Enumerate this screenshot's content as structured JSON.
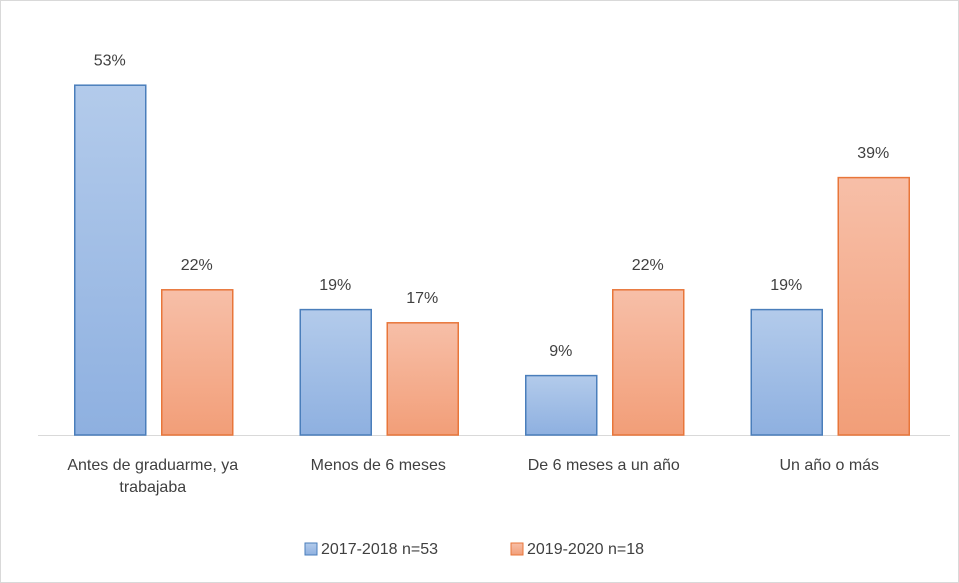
{
  "chart_data": {
    "type": "bar",
    "categories": [
      "Antes de graduarme, ya trabajaba",
      "Menos de 6 meses",
      "De 6 meses a un año",
      "Un año o más"
    ],
    "series": [
      {
        "name": "2017-2018 n=53",
        "color": "#a9c4e8",
        "values": [
          53,
          19,
          9,
          19
        ],
        "value_labels": [
          "53%",
          "19%",
          "9%",
          "19%"
        ]
      },
      {
        "name": "2019-2020 n=18",
        "color": "#f5b195",
        "values": [
          22,
          17,
          22,
          39
        ],
        "value_labels": [
          "22%",
          "17%",
          "22%",
          "39%"
        ]
      }
    ]
  }
}
